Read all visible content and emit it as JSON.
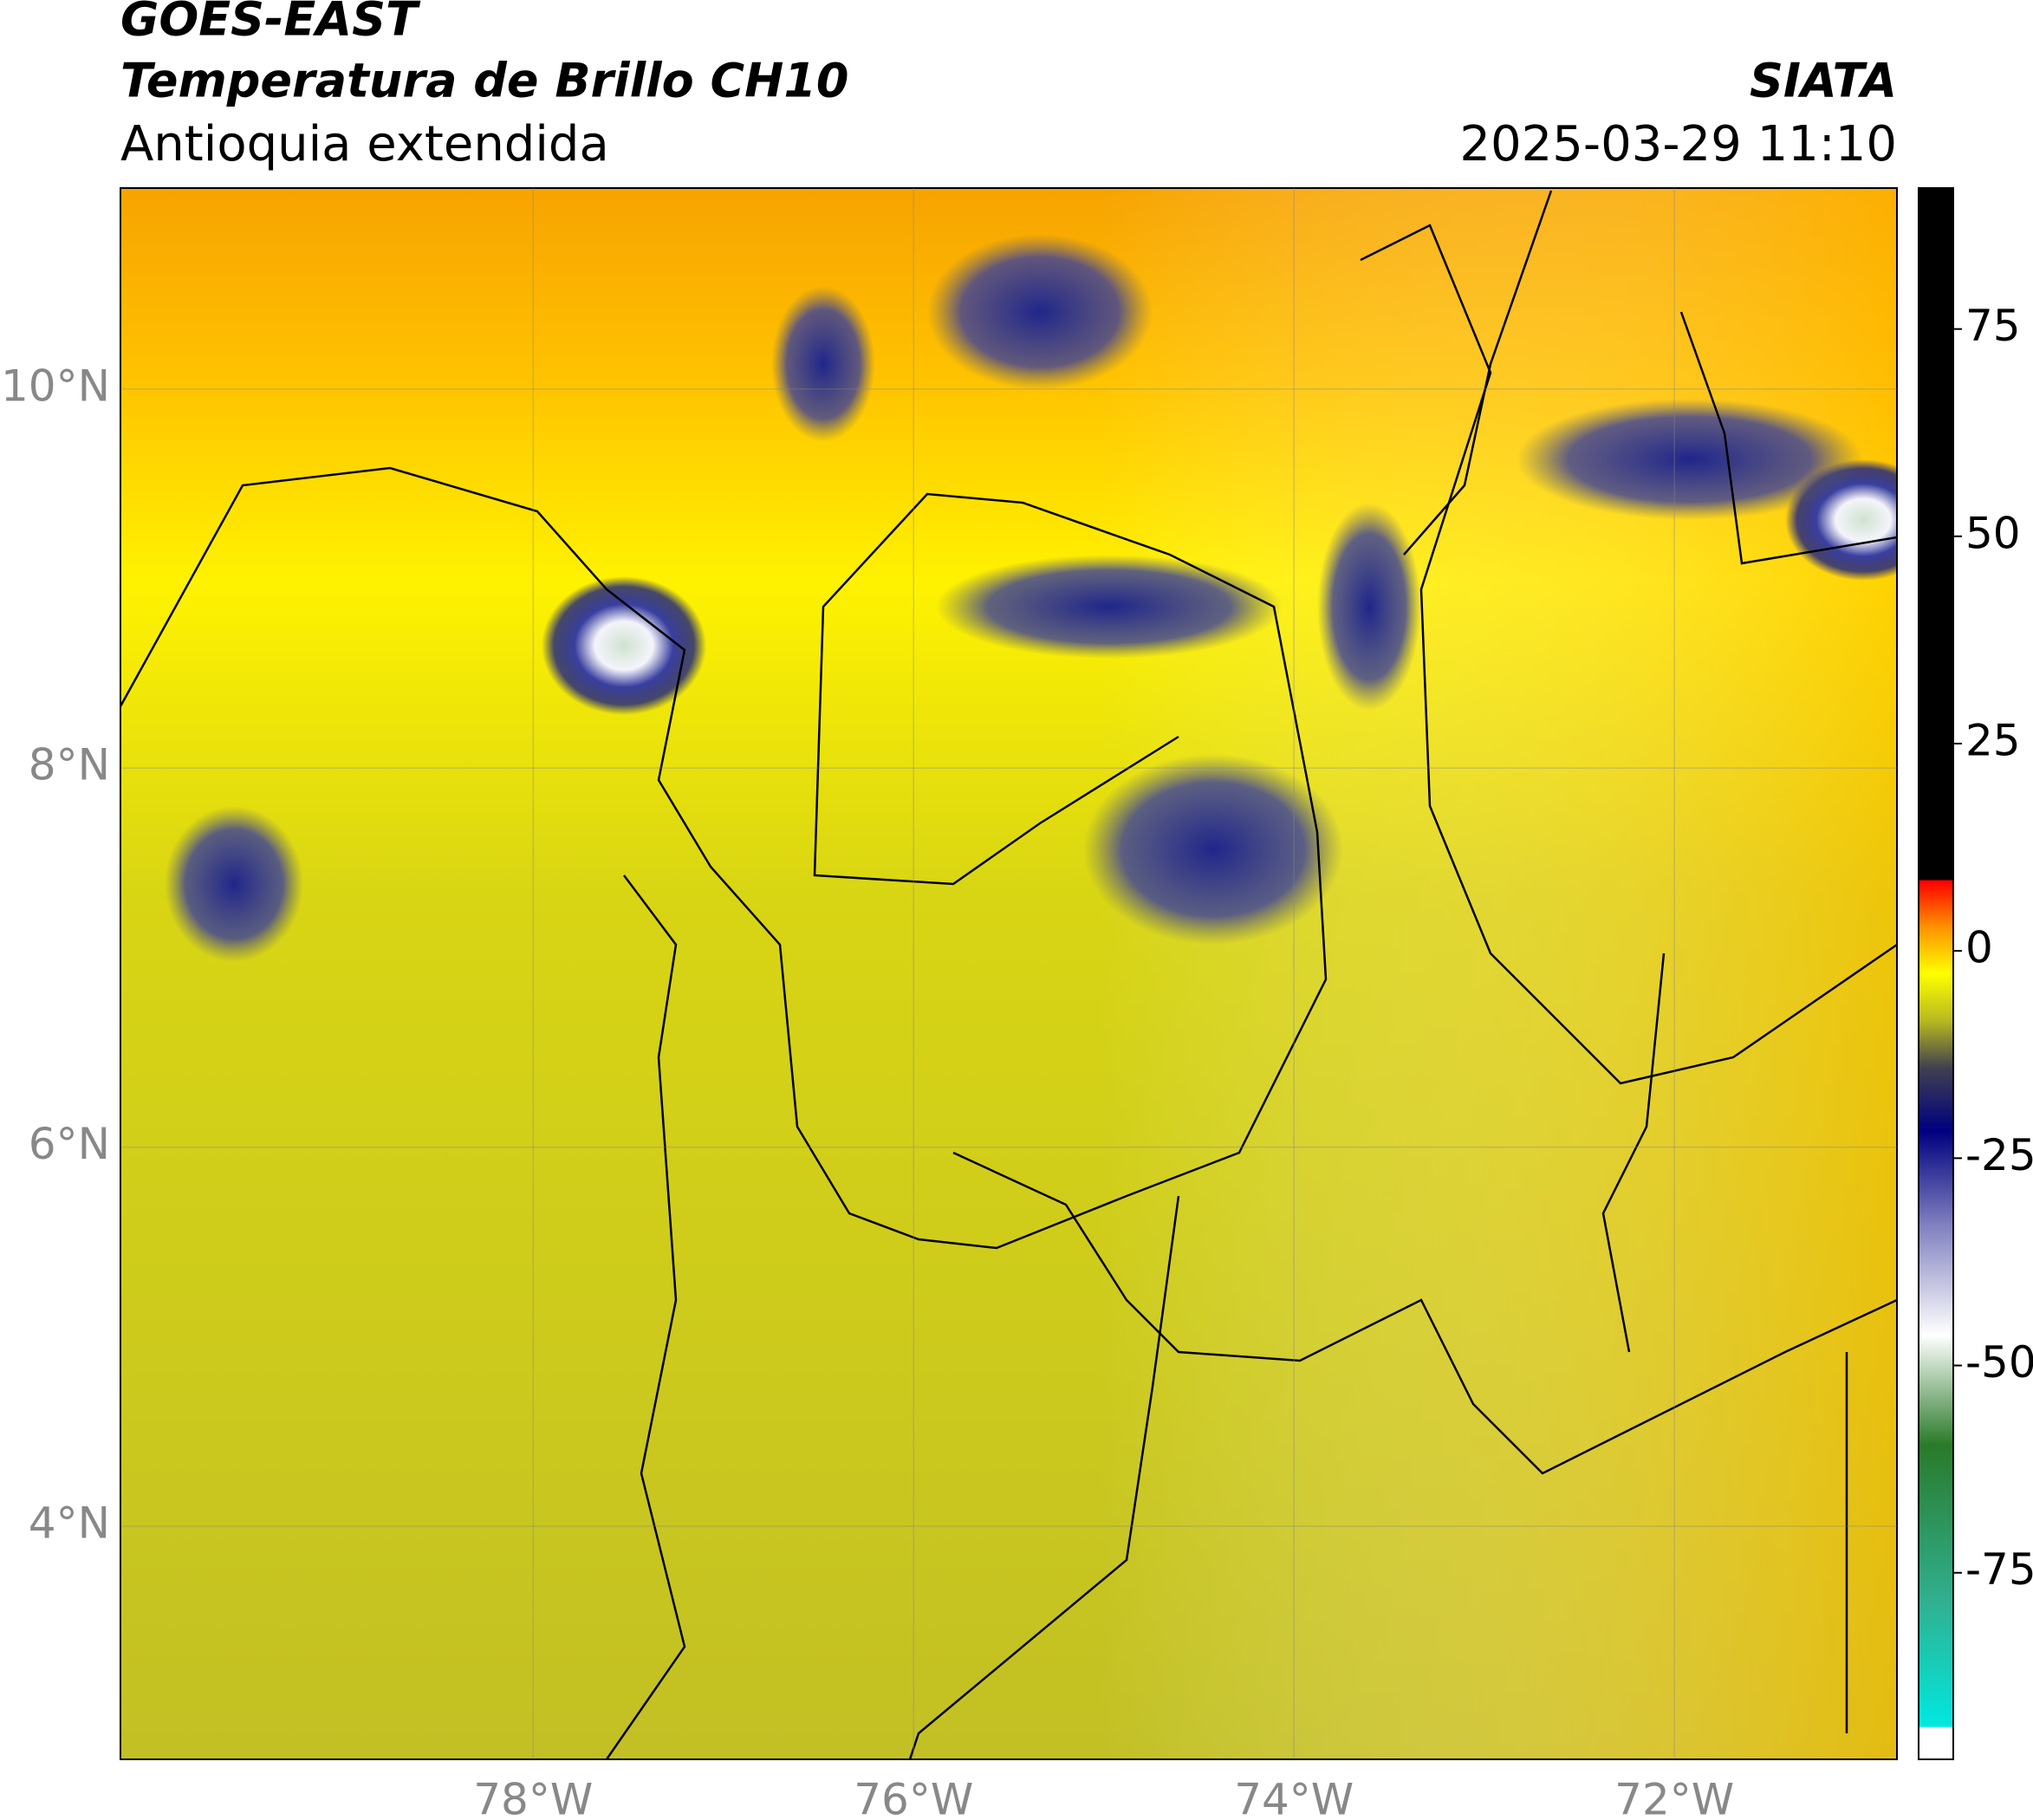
{
  "map": {
    "title": "GOES-EAST",
    "subtitle": "Temperatura de Brillo CH10",
    "region": "Antioquia extendida",
    "source": "SIATA",
    "datetime": "2025-03-29 11:10",
    "xlim": [
      -80.17,
      -70.83
    ],
    "ylim": [
      2.77,
      11.06
    ],
    "xticks": [
      {
        "value": -78,
        "label": "78°W"
      },
      {
        "value": -76,
        "label": "76°W"
      },
      {
        "value": -74,
        "label": "74°W"
      },
      {
        "value": -72,
        "label": "72°W"
      }
    ],
    "yticks": [
      {
        "value": 4,
        "label": "4°N"
      },
      {
        "value": 6,
        "label": "6°N"
      },
      {
        "value": 8,
        "label": "8°N"
      },
      {
        "value": 10,
        "label": "10°N"
      }
    ],
    "grid": true,
    "colorbar": {
      "lim": [
        -97.5,
        92
      ],
      "ticks": [
        -75,
        -50,
        -25,
        0,
        25,
        50,
        75
      ]
    }
  }
}
